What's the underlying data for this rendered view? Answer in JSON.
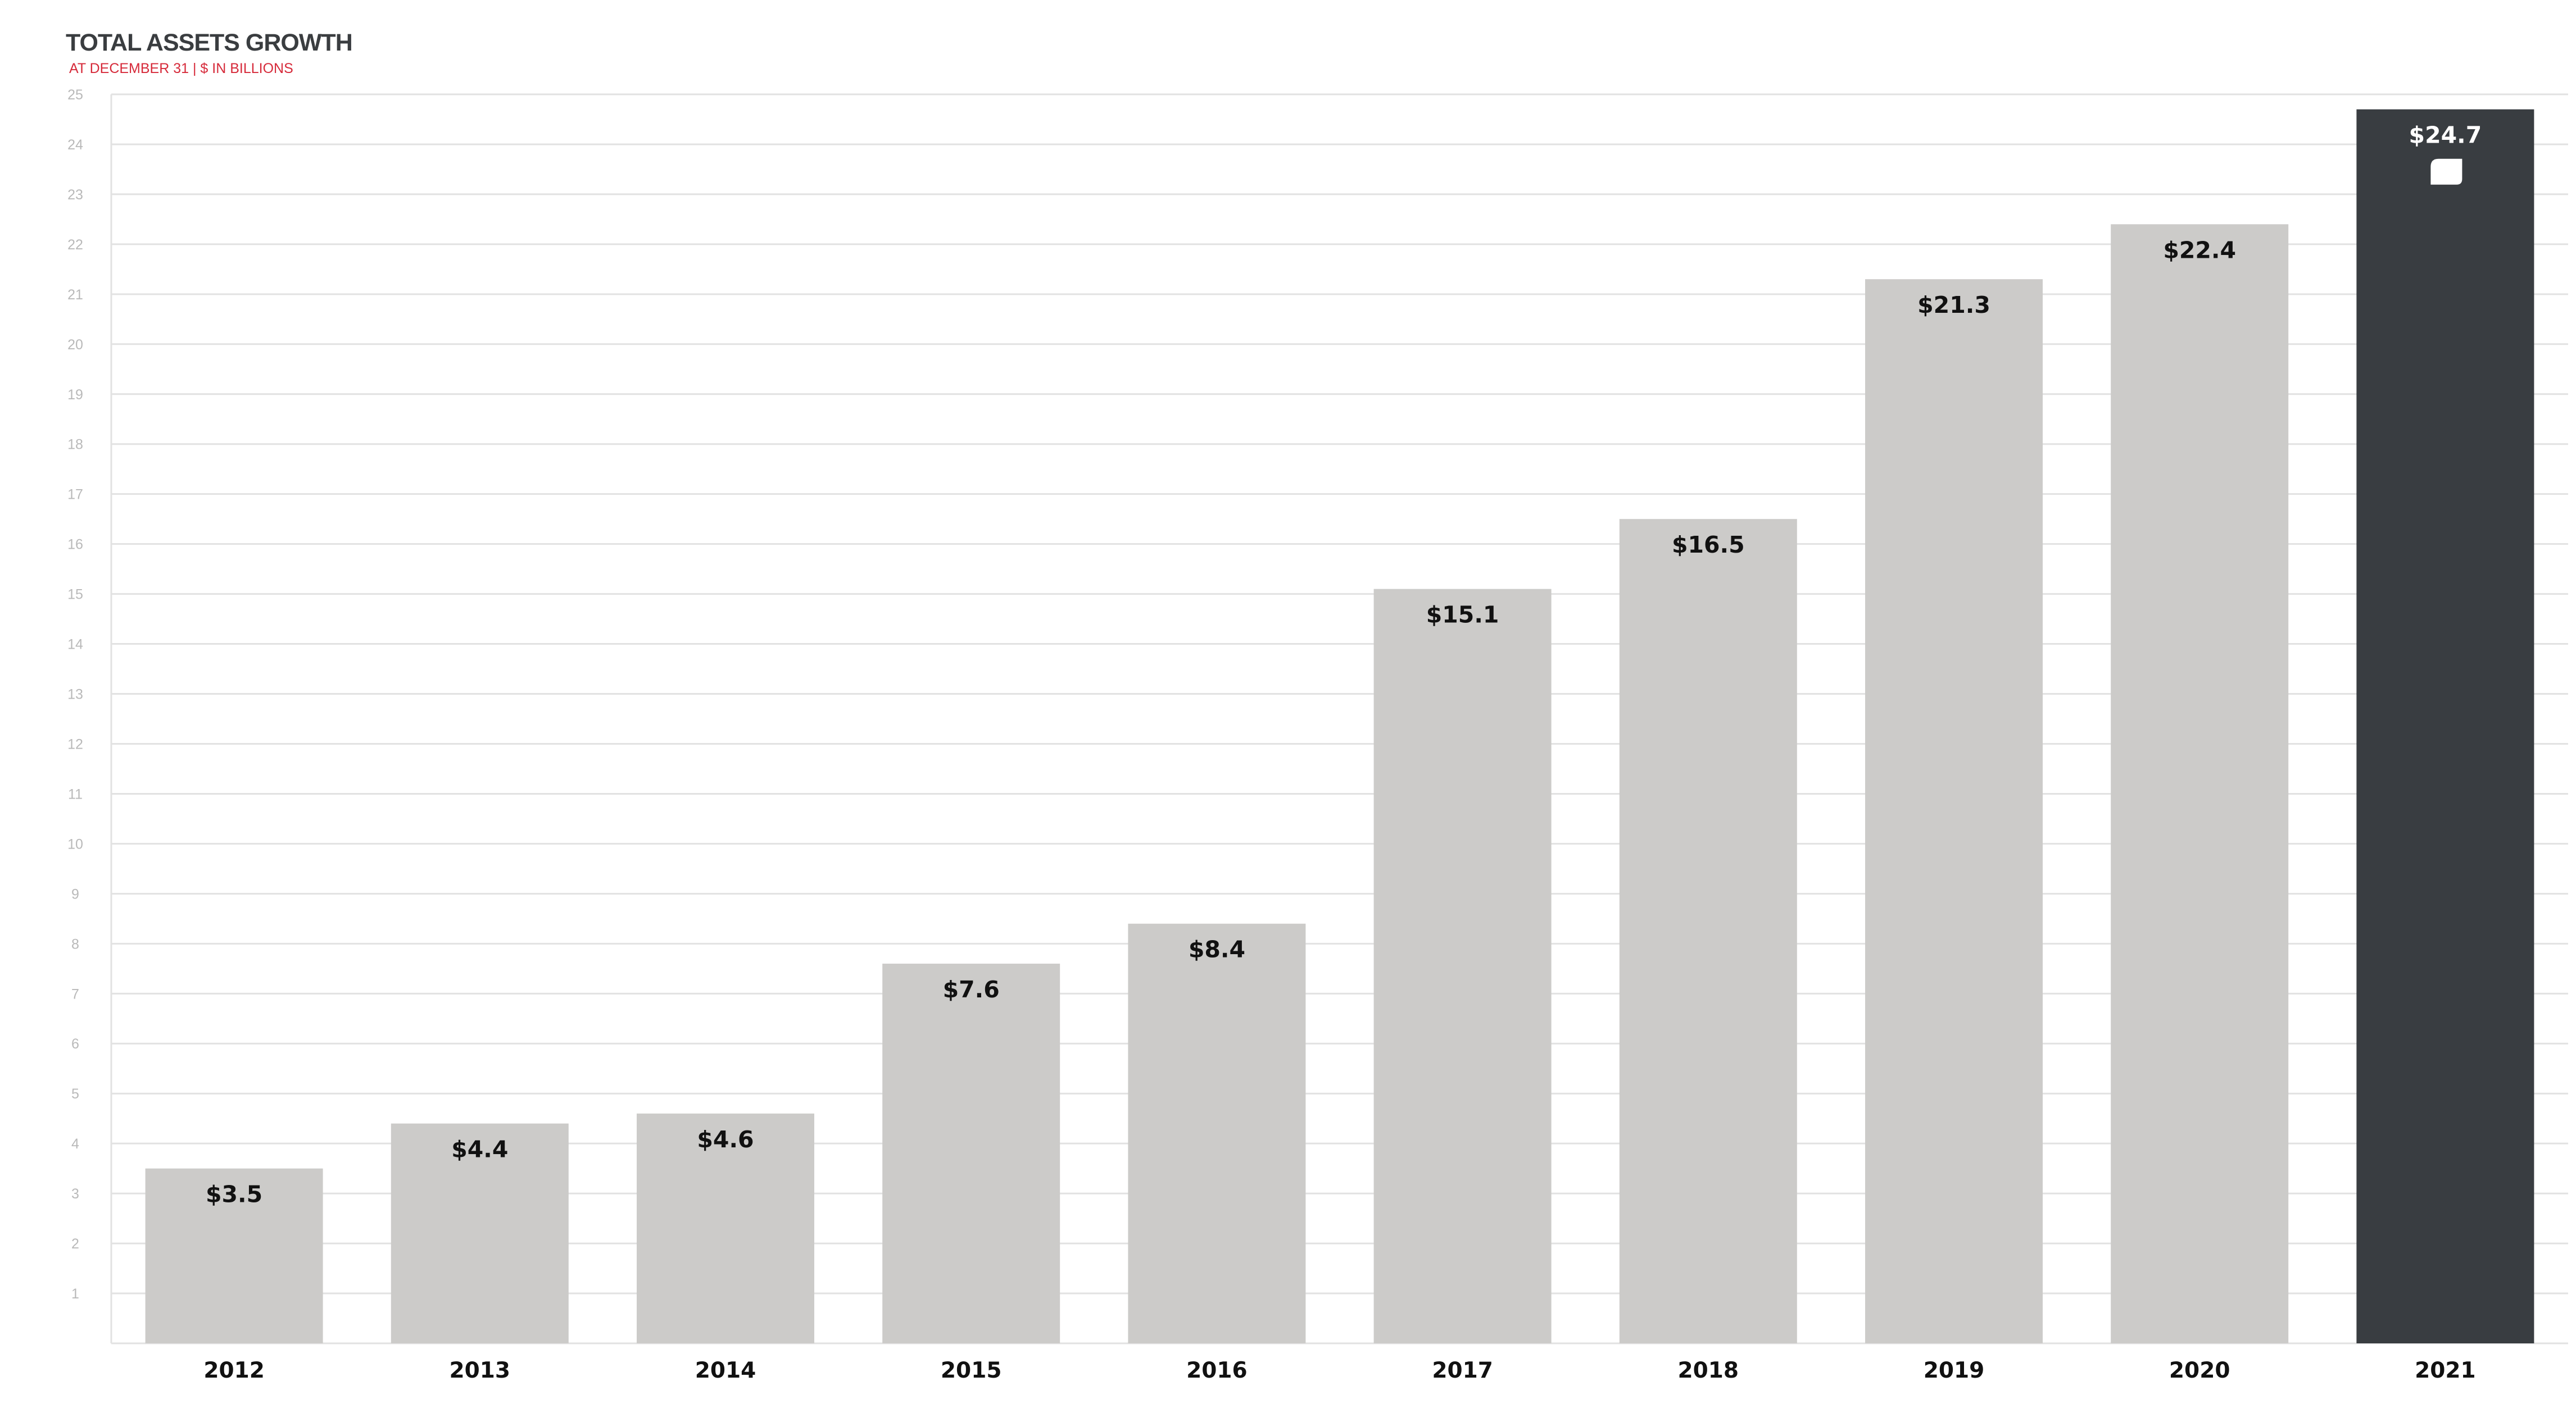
{
  "chart_data": {
    "type": "bar",
    "title": "TOTAL ASSETS GROWTH",
    "subtitle": "AT DECEMBER 31 | $ IN BILLIONS",
    "categories": [
      "2012",
      "2013",
      "2014",
      "2015",
      "2016",
      "2017",
      "2018",
      "2019",
      "2020",
      "2021"
    ],
    "values": [
      3.5,
      4.4,
      4.6,
      7.6,
      8.4,
      15.1,
      16.5,
      21.3,
      22.4,
      24.7
    ],
    "data_labels": [
      "$3.5",
      "$4.4",
      "$4.6",
      "$7.6",
      "$8.4",
      "$15.1",
      "$16.5",
      "$21.3",
      "$22.4",
      "$24.7"
    ],
    "highlight_index": 9,
    "ylim": [
      0,
      25
    ],
    "yticks": [
      1,
      2,
      3,
      4,
      5,
      6,
      7,
      8,
      9,
      10,
      11,
      12,
      13,
      14,
      15,
      16,
      17,
      18,
      19,
      20,
      21,
      22,
      23,
      24,
      25
    ],
    "xlabel": "",
    "ylabel": "",
    "grid": true,
    "legend": "none",
    "colors": {
      "bar": "#cccbc9",
      "highlight_bar": "#393d41",
      "label_dark": "#111111",
      "label_light": "#ffffff",
      "grid": "#e2e2e2",
      "title": "#3a3d40",
      "subtitle": "#d62a3a"
    },
    "highlight_icon": "chat-bubble-icon"
  }
}
